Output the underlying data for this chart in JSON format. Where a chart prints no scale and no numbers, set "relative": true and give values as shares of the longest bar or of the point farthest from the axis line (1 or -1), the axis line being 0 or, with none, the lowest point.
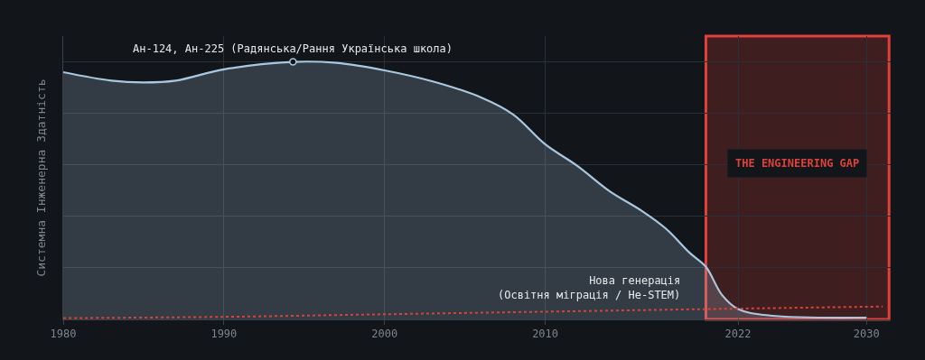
{
  "chart_data": {
    "type": "area",
    "relative": true,
    "ylabel": "Системна Інженерна Здатність",
    "xlim": [
      1980,
      2031.5
    ],
    "xticks": [
      1980,
      1990,
      2000,
      2010,
      2022,
      2030
    ],
    "grid": true,
    "series": [
      {
        "color": "#a9c8e0",
        "x": [
          1980,
          1983,
          1985,
          1987,
          1990,
          1994.3,
          1997,
          2000,
          2003,
          2006,
          2008,
          2010,
          2012,
          2014,
          2016,
          2017.5,
          2019,
          2020,
          2021,
          2022,
          2024,
          2030
        ],
        "values": [
          0.96,
          0.927,
          0.92,
          0.927,
          0.971,
          1,
          0.996,
          0.967,
          0.924,
          0.862,
          0.796,
          0.68,
          0.596,
          0.498,
          0.422,
          0.353,
          0.258,
          0.204,
          0.095,
          0.04,
          0.015,
          0.007
        ]
      },
      {
        "type": "line",
        "line_style": "dotted",
        "color": "#d9423a",
        "x": [
          1980,
          1990,
          2000,
          2010,
          2020,
          2031
        ],
        "values": [
          0.005,
          0.01,
          0.02,
          0.03,
          0.04,
          0.05
        ]
      }
    ],
    "bands": [
      {
        "axis": "x",
        "from": 2020,
        "to": 2031.4,
        "label": "THE ENGINEERING GAP",
        "color": "#e0413a"
      }
    ],
    "annotations": [
      {
        "text": "Ан-124, Ан-225 (Радянська/Рання Українська школа)",
        "x": 1994.3,
        "y": 1
      },
      {
        "text": "Нова генерація\n(Освітня міграція / Не-STEM)",
        "x": 2018.5,
        "y": 0.05
      }
    ]
  }
}
